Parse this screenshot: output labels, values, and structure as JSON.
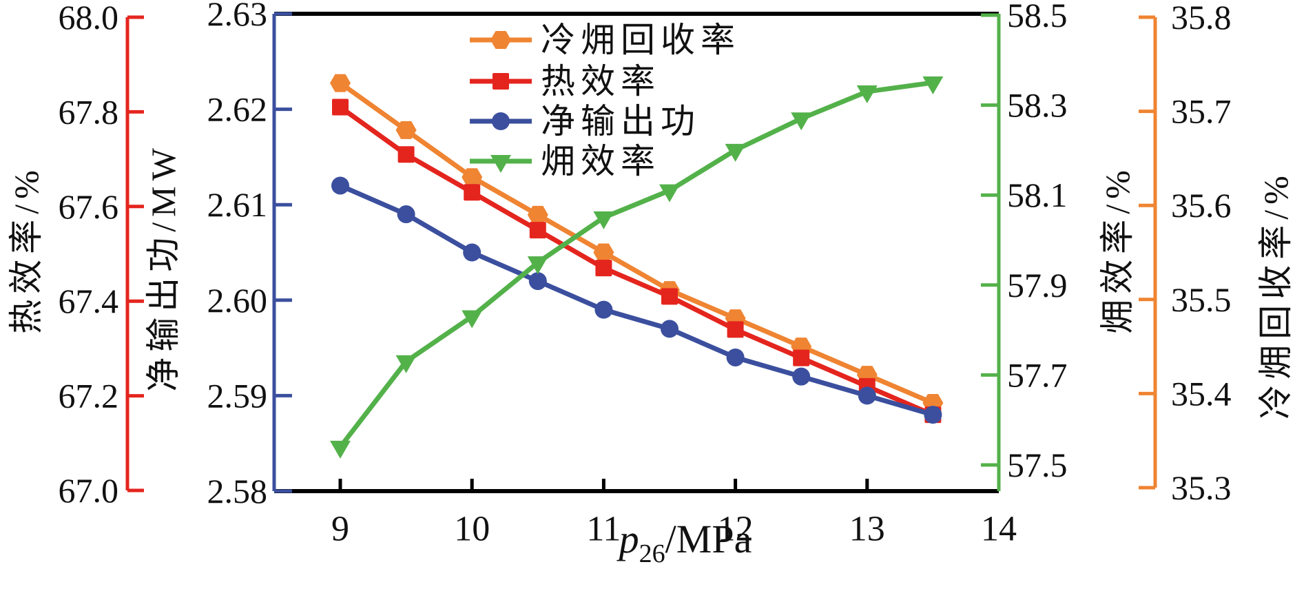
{
  "figure": {
    "background": "#ffffff",
    "frame_color": "#000000"
  },
  "chart_data": {
    "type": "line",
    "x": [
      9,
      9.5,
      10,
      10.5,
      11,
      11.5,
      12,
      12.5,
      13,
      13.5
    ],
    "x_axis": {
      "label_var": "p",
      "label_sub": "26",
      "label_rest": "/MPa",
      "ticks": [
        "9",
        "10",
        "11",
        "12",
        "13",
        "14"
      ],
      "range": [
        8.5,
        14
      ],
      "color": "#000000"
    },
    "axes": [
      {
        "id": "thermal",
        "label": "热效率/%",
        "side": "left-outer",
        "color": "#E4251E",
        "ticks": [
          "67.0",
          "67.2",
          "67.4",
          "67.6",
          "67.8",
          "68.0"
        ],
        "range": [
          67.0,
          68.0
        ]
      },
      {
        "id": "power",
        "label": "净输出功/MW",
        "side": "left-inner",
        "color": "#3B4F9E",
        "ticks": [
          "2.58",
          "2.59",
          "2.60",
          "2.61",
          "2.62",
          "2.63"
        ],
        "range": [
          2.58,
          2.63
        ]
      },
      {
        "id": "exergy",
        "label": "㶲效率/%",
        "side": "right-inner",
        "color": "#53B14A",
        "ticks": [
          "57.5",
          "57.7",
          "57.9",
          "58.1",
          "58.3",
          "58.5"
        ],
        "range": [
          57.5,
          58.5
        ]
      },
      {
        "id": "cold",
        "label": "冷㶲回收率/%",
        "side": "right-outer",
        "color": "#EF8432",
        "ticks": [
          "35.3",
          "35.4",
          "35.5",
          "35.6",
          "35.7",
          "35.8"
        ],
        "range": [
          35.3,
          35.8
        ]
      }
    ],
    "series": [
      {
        "name": "冷㶲回收率",
        "axis": "cold",
        "marker": "hexagon",
        "color": "#EF8432",
        "values": [
          35.73,
          35.68,
          35.63,
          35.59,
          35.55,
          35.51,
          35.48,
          35.45,
          35.42,
          35.39
        ]
      },
      {
        "name": "热效率",
        "axis": "thermal",
        "marker": "square",
        "color": "#E4251E",
        "values": [
          67.81,
          67.71,
          67.63,
          67.55,
          67.47,
          67.41,
          67.34,
          67.28,
          67.22,
          67.16
        ]
      },
      {
        "name": "净输出功",
        "axis": "power",
        "marker": "circle",
        "color": "#3B4F9E",
        "values": [
          2.612,
          2.609,
          2.605,
          2.602,
          2.599,
          2.597,
          2.594,
          2.592,
          2.59,
          2.588
        ]
      },
      {
        "name": "㶲效率",
        "axis": "exergy",
        "marker": "triangle-down",
        "color": "#53B14A",
        "values": [
          57.54,
          57.73,
          57.83,
          57.95,
          58.05,
          58.11,
          58.2,
          58.27,
          58.33,
          58.35
        ]
      }
    ],
    "legend": {
      "position": "top-center",
      "entries": [
        "冷㶲回收率",
        "热效率",
        "净输出功",
        "㶲效率"
      ]
    }
  }
}
